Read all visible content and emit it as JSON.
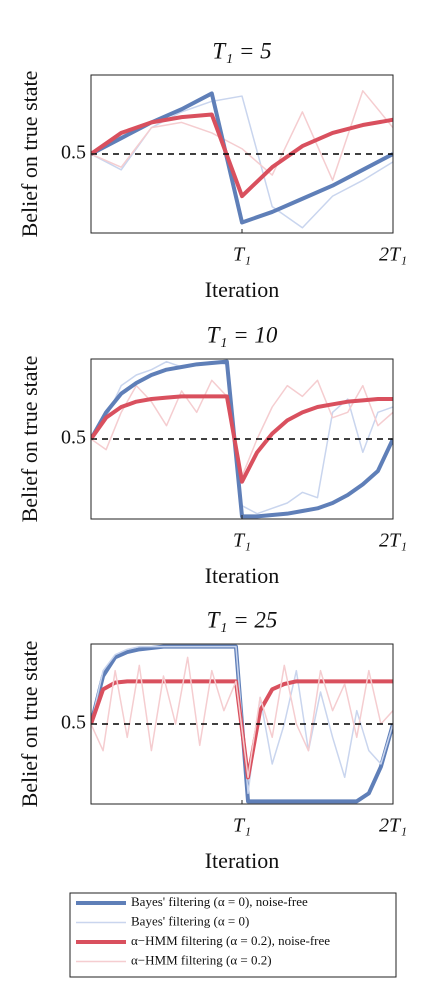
{
  "chart_data": [
    {
      "type": "line",
      "title": "T₁ = 5",
      "xlabel": "Iteration",
      "ylabel": "Belief on true state",
      "x": [
        0,
        1,
        2,
        3,
        4,
        5,
        6,
        7,
        8,
        9,
        10
      ],
      "xlim": [
        0,
        10
      ],
      "xticks": [
        {
          "value": 5,
          "label": "T₁"
        },
        {
          "value": 10,
          "label": "2T₁"
        }
      ],
      "ylim": [
        0.2,
        0.8
      ],
      "yticks": [
        0.5
      ],
      "hline": 0.5,
      "series": [
        {
          "color": "#c9d5ee",
          "linewidth": 1.5,
          "values": [
            0.5,
            0.44,
            0.6,
            0.66,
            0.7,
            0.72,
            0.3,
            0.22,
            0.34,
            0.4,
            0.47
          ]
        },
        {
          "color": "#f5cdd0",
          "linewidth": 1.5,
          "values": [
            0.5,
            0.45,
            0.6,
            0.62,
            0.58,
            0.52,
            0.42,
            0.66,
            0.4,
            0.74,
            0.6
          ]
        },
        {
          "color": "#5f7fb8",
          "linewidth": 4,
          "values": [
            0.5,
            0.56,
            0.62,
            0.67,
            0.73,
            0.24,
            0.28,
            0.33,
            0.38,
            0.44,
            0.5
          ]
        },
        {
          "color": "#d9505e",
          "linewidth": 4,
          "values": [
            0.5,
            0.58,
            0.62,
            0.64,
            0.65,
            0.34,
            0.45,
            0.53,
            0.58,
            0.61,
            0.63
          ]
        }
      ]
    },
    {
      "type": "line",
      "title": "T₁ = 10",
      "xlabel": "Iteration",
      "ylabel": "Belief on true state",
      "x": [
        0,
        1,
        2,
        3,
        4,
        5,
        6,
        7,
        8,
        9,
        10,
        11,
        12,
        13,
        14,
        15,
        16,
        17,
        18,
        19,
        20
      ],
      "xlim": [
        0,
        20
      ],
      "xticks": [
        {
          "value": 10,
          "label": "T₁"
        },
        {
          "value": 20,
          "label": "2T₁"
        }
      ],
      "ylim": [
        0.2,
        0.8
      ],
      "yticks": [
        0.5
      ],
      "hline": 0.5,
      "series": [
        {
          "color": "#c9d5ee",
          "linewidth": 1.5,
          "values": [
            0.5,
            0.58,
            0.7,
            0.74,
            0.76,
            0.79,
            0.77,
            0.78,
            0.79,
            0.78,
            0.25,
            0.22,
            0.24,
            0.26,
            0.3,
            0.28,
            0.6,
            0.65,
            0.45,
            0.6,
            0.62
          ]
        },
        {
          "color": "#f5cdd0",
          "linewidth": 1.5,
          "values": [
            0.5,
            0.46,
            0.6,
            0.7,
            0.64,
            0.55,
            0.68,
            0.6,
            0.72,
            0.66,
            0.36,
            0.5,
            0.62,
            0.7,
            0.66,
            0.72,
            0.58,
            0.6,
            0.7,
            0.55,
            0.6
          ]
        },
        {
          "color": "#5f7fb8",
          "linewidth": 4,
          "values": [
            0.5,
            0.6,
            0.67,
            0.71,
            0.74,
            0.76,
            0.77,
            0.78,
            0.785,
            0.79,
            0.21,
            0.21,
            0.215,
            0.22,
            0.23,
            0.24,
            0.26,
            0.29,
            0.33,
            0.38,
            0.5
          ]
        },
        {
          "color": "#d9505e",
          "linewidth": 4,
          "values": [
            0.5,
            0.58,
            0.62,
            0.64,
            0.65,
            0.655,
            0.66,
            0.66,
            0.66,
            0.66,
            0.34,
            0.45,
            0.52,
            0.57,
            0.6,
            0.62,
            0.63,
            0.64,
            0.645,
            0.65,
            0.65
          ]
        }
      ]
    },
    {
      "type": "line",
      "title": "T₁ = 25",
      "xlabel": "Iteration",
      "ylabel": "Belief on true state",
      "x": [
        0,
        2,
        4,
        6,
        8,
        10,
        12,
        14,
        16,
        18,
        20,
        22,
        24,
        26,
        28,
        30,
        32,
        34,
        36,
        38,
        40,
        42,
        44,
        46,
        48,
        50
      ],
      "xlim": [
        0,
        50
      ],
      "xticks": [
        {
          "value": 25,
          "label": "T₁"
        },
        {
          "value": 50,
          "label": "2T₁"
        }
      ],
      "ylim": [
        0.2,
        0.8
      ],
      "yticks": [
        0.5
      ],
      "hline": 0.5,
      "series": [
        {
          "name": "Bayes' filtering (α = 0), noise-free",
          "color": "#5f7fb8",
          "linewidth": 4,
          "values": [
            0.5,
            0.68,
            0.75,
            0.77,
            0.78,
            0.785,
            0.79,
            0.79,
            0.79,
            0.79,
            0.79,
            0.79,
            0.79,
            0.21,
            0.21,
            0.21,
            0.21,
            0.21,
            0.21,
            0.21,
            0.21,
            0.21,
            0.21,
            0.24,
            0.34,
            0.5
          ]
        },
        {
          "name": "Bayes' filtering (α = 0)",
          "color": "#c9d5ee",
          "linewidth": 1.5,
          "values": [
            0.5,
            0.7,
            0.76,
            0.78,
            0.79,
            0.79,
            0.79,
            0.79,
            0.79,
            0.79,
            0.79,
            0.79,
            0.79,
            0.24,
            0.6,
            0.35,
            0.5,
            0.7,
            0.4,
            0.62,
            0.45,
            0.3,
            0.55,
            0.4,
            0.35,
            0.5
          ]
        },
        {
          "name": "α−HMM filtering (α = 0.2), noise-free",
          "color": "#d9505e",
          "linewidth": 4,
          "values": [
            0.5,
            0.63,
            0.655,
            0.66,
            0.66,
            0.66,
            0.66,
            0.66,
            0.66,
            0.66,
            0.66,
            0.66,
            0.66,
            0.3,
            0.55,
            0.63,
            0.65,
            0.66,
            0.66,
            0.66,
            0.66,
            0.66,
            0.66,
            0.66,
            0.66,
            0.66
          ]
        },
        {
          "name": "α−HMM filtering (α = 0.2)",
          "color": "#f5cdd0",
          "linewidth": 1.5,
          "values": [
            0.5,
            0.4,
            0.7,
            0.45,
            0.72,
            0.4,
            0.68,
            0.5,
            0.75,
            0.42,
            0.7,
            0.55,
            0.66,
            0.3,
            0.6,
            0.45,
            0.72,
            0.5,
            0.4,
            0.7,
            0.55,
            0.65,
            0.45,
            0.7,
            0.5,
            0.55
          ]
        }
      ]
    }
  ]
}
